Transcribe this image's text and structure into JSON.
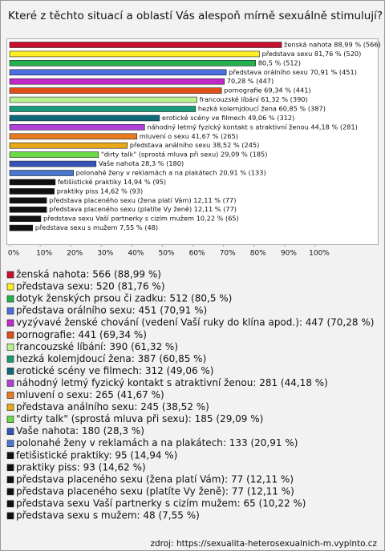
{
  "chart_data": {
    "type": "barh",
    "title": "Které z těchto situací a oblastí Vás alespoň mírně sexuálně stimulují?",
    "categories": [
      "ženská nahota",
      "představa sexu",
      "dotyk ženských prsou či zadku",
      "představa orálního sexu",
      "vyzývavé ženské chování (vedení Vaší ruky do klína apod.)",
      "pornografie",
      "francouzské líbání",
      "hezká kolemjdoucí žena",
      "erotické scény ve filmech",
      "náhodný letmý fyzický kontakt s atraktivní ženou",
      "mluvení o sexu",
      "představa análního sexu",
      "\"dirty talk\" (sprostá mluva při sexu)",
      "Vaše nahota",
      "polonahé ženy v reklamách a na plakátech",
      "fetišistické praktiky",
      "praktiky piss",
      "představa placeného sexu (žena platí Vám)",
      "představa placeného sexu (platíte Vy ženě)",
      "představa sexu Vaší partnerky s cizím mužem",
      "představa sexu s mužem"
    ],
    "values": [
      88.99,
      81.76,
      80.5,
      70.91,
      70.28,
      69.34,
      61.32,
      60.85,
      49.06,
      44.18,
      41.67,
      38.52,
      29.09,
      28.3,
      20.91,
      14.94,
      14.62,
      12.11,
      12.11,
      10.22,
      7.55
    ],
    "value_labels": [
      "ženská nahota 88,99 % (566)",
      "představa sexu 81,76 % (520)",
      "80,5 % (512)",
      "představa orálního sexu 70,91 % (451)",
      "70,28 % (447)",
      "pornografie 69,34 % (441)",
      "francouzské líbání 61,32 % (390)",
      "hezká kolemjdoucí žena 60,85 % (387)",
      "erotické scény ve filmech 49,06 % (312)",
      "náhodný letmý fyzický kontakt s atraktivní ženou 44,18 % (281)",
      "mluvení o sexu 41,67 % (265)",
      "představa análního sexu 38,52 % (245)",
      "\"dirty talk\" (sprostá mluva při sexu) 29,09 % (185)",
      "Vaše nahota 28,3 % (180)",
      "polonahé ženy v reklamách a na plakátech 20,91 % (133)",
      "fetišistické praktiky 14,94 % (95)",
      "praktiky piss 14,62 % (93)",
      "představa placeného sexu (žena platí Vám) 12,11 % (77)",
      "představa placeného sexu (platíte Vy ženě) 12,11 % (77)",
      "představa sexu Vaší partnerky s cizím mužem 10,22 % (65)",
      "představa sexu s mužem 7,55 % (48)"
    ],
    "legend_labels": [
      "ženská nahota: 566 (88,99 %)",
      "představa sexu: 520 (81,76 %)",
      "dotyk ženských prsou či zadku: 512 (80,5 %)",
      "představa orálního sexu: 451 (70,91 %)",
      "vyzývavé ženské chování (vedení Vaší ruky do klína apod.): 447 (70,28 %)",
      "pornografie: 441 (69,34 %)",
      "francouzské líbání: 390 (61,32 %)",
      "hezká kolemjdoucí žena: 387 (60,85 %)",
      "erotické scény ve filmech: 312 (49,06 %)",
      "náhodný letmý fyzický kontakt s atraktivní ženou: 281 (44,18 %)",
      "mluvení o sexu: 265 (41,67 %)",
      "představa análního sexu: 245 (38,52 %)",
      "\"dirty talk\" (sprostá mluva při sexu): 185 (29,09 %)",
      "Vaše nahota: 180 (28,3 %)",
      "polonahé ženy v reklamách a na plakátech: 133 (20,91 %)",
      "fetišistické praktiky: 95 (14,94 %)",
      "praktiky piss: 93 (14,62 %)",
      "představa placeného sexu (žena platí Vám): 77 (12,11 %)",
      "představa placeného sexu (platíte Vy ženě): 77 (12,11 %)",
      "představa sexu Vaší partnerky s cizím mužem: 65 (10,22 %)",
      "představa sexu s mužem: 48 (7,55 %)"
    ],
    "colors": [
      "#c8102e",
      "#ffee22",
      "#22b14c",
      "#4a6fe0",
      "#c028c8",
      "#e0501a",
      "#b8f090",
      "#1a9a78",
      "#0e6a7a",
      "#b040d8",
      "#e87a20",
      "#e8a818",
      "#6ad848",
      "#3454b8",
      "#4a78d0",
      "#111111",
      "#111111",
      "#111111",
      "#111111",
      "#111111",
      "#111111"
    ],
    "xlim": [
      0,
      100
    ],
    "xticks": [
      {
        "value": 0,
        "label": "0%"
      },
      {
        "value": 10,
        "label": "10%"
      },
      {
        "value": 20,
        "label": "20%"
      },
      {
        "value": 30,
        "label": "30%"
      },
      {
        "value": 40,
        "label": "40%"
      },
      {
        "value": 50,
        "label": "50%"
      },
      {
        "value": 60,
        "label": "60%"
      },
      {
        "value": 70,
        "label": "70%"
      },
      {
        "value": 80,
        "label": "80%"
      },
      {
        "value": 90,
        "label": "90%"
      },
      {
        "value": 100,
        "label": "100%"
      }
    ],
    "source": "zdroj: https://sexualita-heterosexualnich-m.vyplnto.cz"
  }
}
